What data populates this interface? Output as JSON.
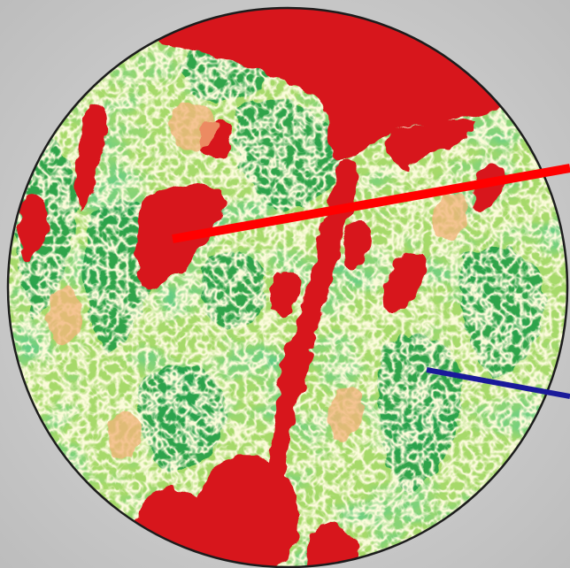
{
  "palette": {
    "background": "#d0d0d0",
    "dark_green": "#1a9641",
    "mid_green": "#5fba62",
    "light_green": "#a6d96a",
    "pale_yellow": "#f3f5b0",
    "peach": "#f3b27a",
    "red": "#d7191c",
    "pointer_red": "#ff0000",
    "pointer_blue": "#1a1a9a",
    "outline": "#1c1c1c"
  },
  "image": {
    "subject": "ndvi-vegetation-map-circle",
    "pointers": [
      {
        "name": "red-pointer-line",
        "color_key": "pointer_red"
      },
      {
        "name": "blue-pointer-line",
        "color_key": "pointer_blue"
      }
    ]
  }
}
